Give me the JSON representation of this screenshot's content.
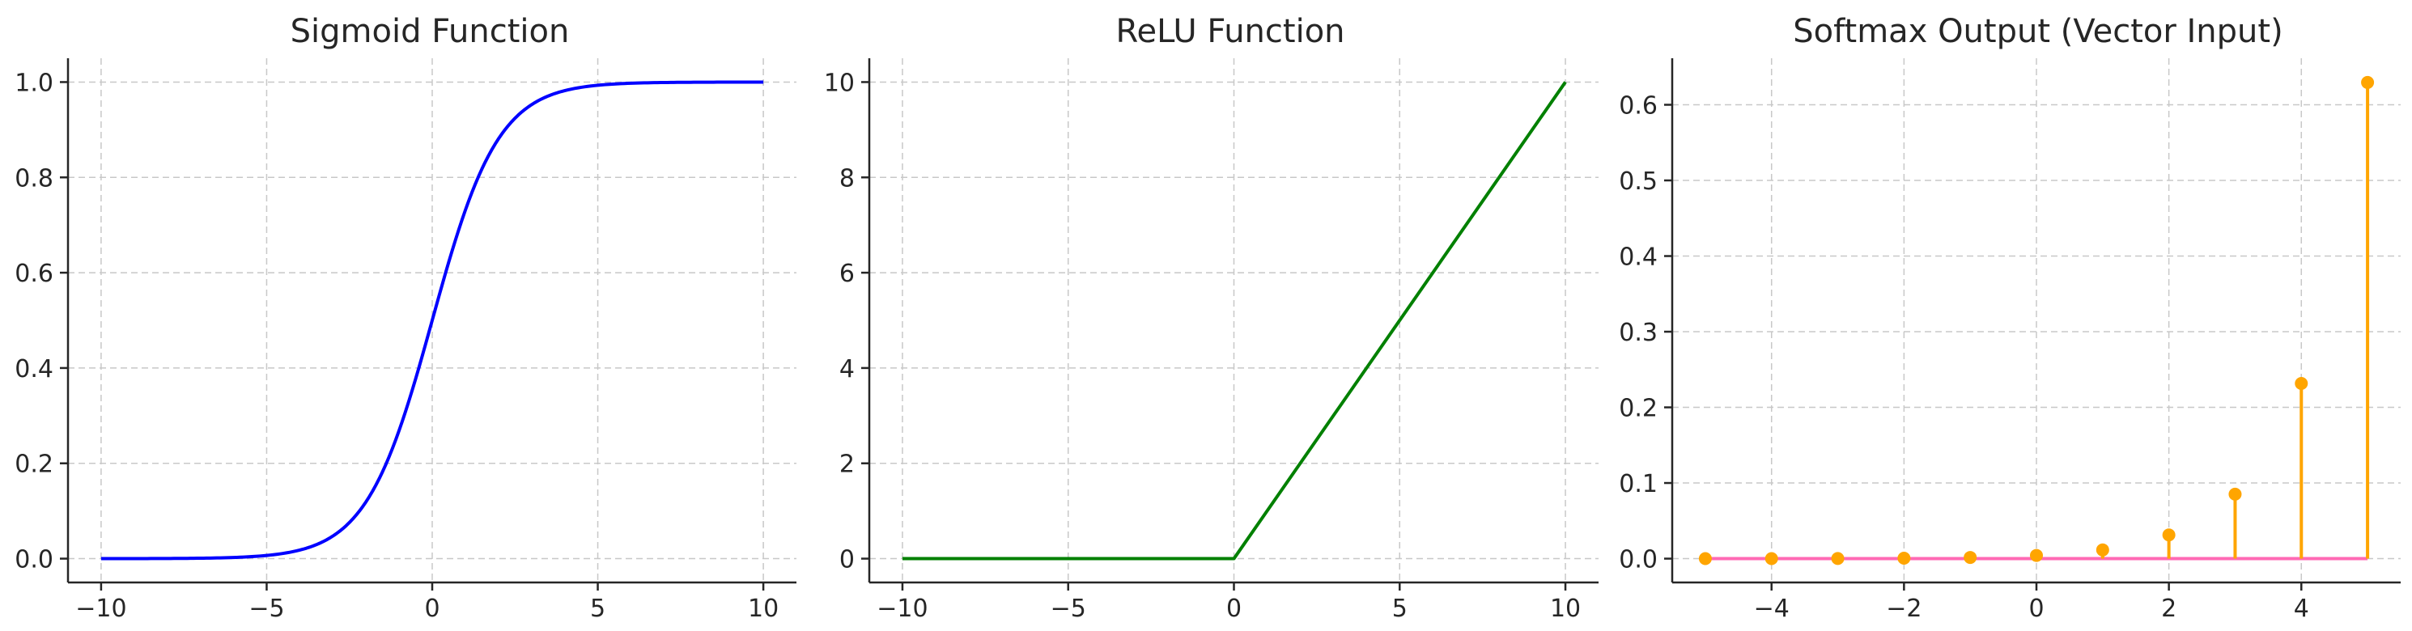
{
  "chart_data": [
    {
      "type": "line",
      "title": "Sigmoid Function",
      "function": "sigmoid",
      "xlim": [
        -11,
        11
      ],
      "ylim": [
        -0.05,
        1.05
      ],
      "xticks": [
        -10,
        -5,
        0,
        5,
        10
      ],
      "xtick_labels": [
        "−10",
        "−5",
        "0",
        "5",
        "10"
      ],
      "yticks": [
        0,
        0.2,
        0.4,
        0.6,
        0.8,
        1.0
      ],
      "ytick_labels": [
        "0.0",
        "0.2",
        "0.4",
        "0.6",
        "0.8",
        "1.0"
      ],
      "grid": true,
      "series": [
        {
          "color": "#0000ff",
          "x": [
            -10,
            -8,
            -6,
            -5,
            -4,
            -3,
            -2,
            -1,
            0,
            1,
            2,
            3,
            4,
            5,
            6,
            8,
            10
          ],
          "y": [
            4.54e-05,
            0.000335,
            0.00247,
            0.00669,
            0.018,
            0.0474,
            0.119,
            0.269,
            0.5,
            0.731,
            0.881,
            0.953,
            0.982,
            0.993,
            0.998,
            0.9997,
            0.99995
          ]
        }
      ]
    },
    {
      "type": "line",
      "title": "ReLU Function",
      "function": "relu",
      "xlim": [
        -11,
        11
      ],
      "ylim": [
        -0.5,
        10.5
      ],
      "xticks": [
        -10,
        -5,
        0,
        5,
        10
      ],
      "xtick_labels": [
        "−10",
        "−5",
        "0",
        "5",
        "10"
      ],
      "yticks": [
        0,
        2,
        4,
        6,
        8,
        10
      ],
      "ytick_labels": [
        "0",
        "2",
        "4",
        "6",
        "8",
        "10"
      ],
      "grid": true,
      "series": [
        {
          "color": "#008000",
          "x": [
            -10,
            0,
            10
          ],
          "y": [
            0,
            0,
            10
          ]
        }
      ]
    },
    {
      "type": "stem",
      "title": "Softmax Output (Vector Input)",
      "xlim": [
        -5.5,
        5.5
      ],
      "ylim": [
        -0.0315,
        0.6615
      ],
      "xticks": [
        -4,
        -2,
        0,
        2,
        4
      ],
      "xtick_labels": [
        "−4",
        "−2",
        "0",
        "2",
        "4"
      ],
      "yticks": [
        0,
        0.1,
        0.2,
        0.3,
        0.4,
        0.5,
        0.6
      ],
      "ytick_labels": [
        "0.0",
        "0.1",
        "0.2",
        "0.3",
        "0.4",
        "0.5",
        "0.6"
      ],
      "grid": true,
      "baseline_color": "#ff69b4",
      "stem_color": "#ffa500",
      "x": [
        -5,
        -4,
        -3,
        -2,
        -1,
        0,
        1,
        2,
        3,
        4,
        5
      ],
      "values": [
        2.85e-05,
        7.75e-05,
        0.000211,
        0.000573,
        0.00156,
        0.00424,
        0.0115,
        0.0313,
        0.0852,
        0.2316,
        0.6295
      ]
    }
  ]
}
